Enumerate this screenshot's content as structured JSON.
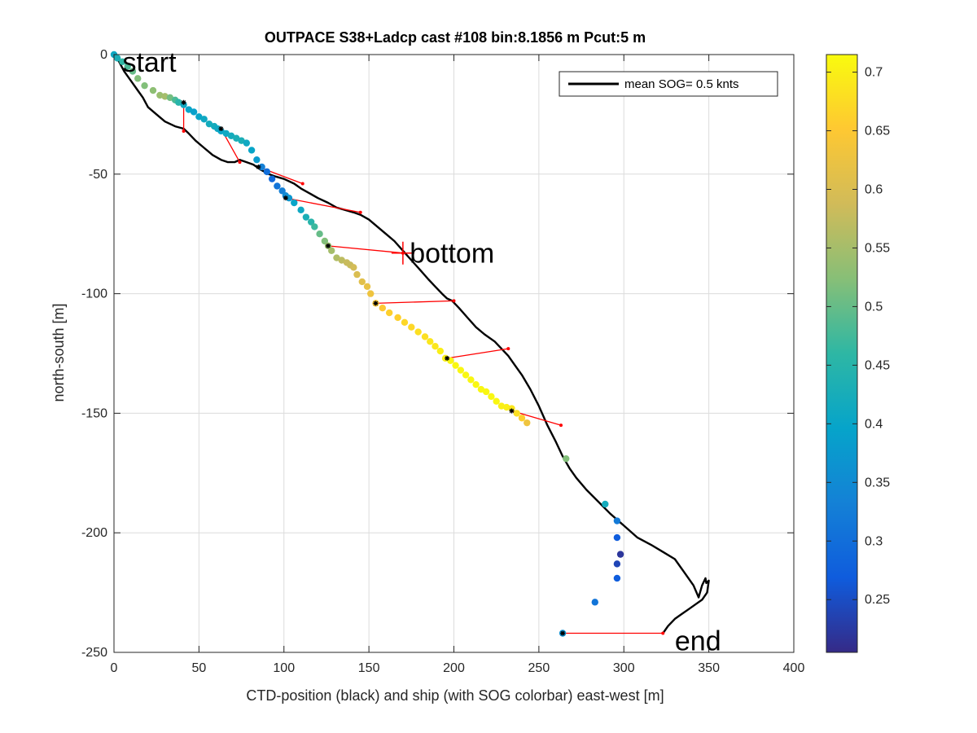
{
  "chart_data": {
    "type": "scatter",
    "title": "OUTPACE S38+Ladcp cast #108 bin:8.1856 m  Pcut:5 m",
    "xlabel": "CTD-position (black) and ship (with SOG colorbar) east-west [m]",
    "ylabel": "north-south [m]",
    "xlim": [
      0,
      400
    ],
    "ylim": [
      -250,
      0
    ],
    "xticks": [
      0,
      50,
      100,
      150,
      200,
      250,
      300,
      350,
      400
    ],
    "yticks": [
      -250,
      -200,
      -150,
      -100,
      -50,
      0
    ],
    "grid": true,
    "legend": {
      "placement": "top-right",
      "entries": [
        "mean SOG=  0.5 knts"
      ]
    },
    "colorbar": {
      "range": [
        0.205,
        0.715
      ],
      "ticks": [
        0.25,
        0.3,
        0.35,
        0.4,
        0.45,
        0.5,
        0.55,
        0.6,
        0.65,
        0.7
      ],
      "colormap": [
        "#352a87",
        "#0f5cdd",
        "#1481d6",
        "#06a4ca",
        "#2eb7a4",
        "#87bf77",
        "#d1bb59",
        "#fec832",
        "#f9fb0e"
      ]
    },
    "annotations": [
      {
        "text": "start",
        "x": 5,
        "y": -3
      },
      {
        "text": "bottom",
        "x": 174,
        "y": -83
      },
      {
        "text": "end",
        "x": 330,
        "y": -245
      }
    ],
    "ctd_track": {
      "name": "CTD-position",
      "x": [
        0,
        3,
        6,
        10,
        14,
        17,
        20,
        25,
        30,
        36,
        41,
        44,
        48,
        53,
        58,
        63,
        67,
        71,
        74,
        78,
        82,
        86,
        91,
        95,
        100,
        106,
        110,
        115,
        120,
        126,
        131,
        136,
        141,
        145,
        150,
        155,
        160,
        165,
        170,
        175,
        180,
        185,
        189,
        193,
        196,
        199,
        203,
        208,
        213,
        218,
        224,
        228,
        232,
        236,
        240,
        245,
        250,
        255,
        260,
        264,
        268,
        272,
        278,
        285,
        292,
        300,
        308,
        316,
        323,
        330,
        336,
        341,
        344,
        346,
        348,
        348.5,
        350,
        349,
        346,
        342,
        338,
        334,
        330,
        326,
        323
      ],
      "y": [
        0,
        -3,
        -7,
        -11,
        -15,
        -18,
        -22,
        -25,
        -28,
        -30,
        -31,
        -33,
        -36,
        -39,
        -42,
        -44,
        -45,
        -45,
        -44,
        -45,
        -46,
        -48,
        -50,
        -51,
        -52,
        -54,
        -56,
        -58,
        -60,
        -62,
        -64,
        -65,
        -66,
        -67,
        -69,
        -72,
        -75,
        -78,
        -82,
        -86,
        -90,
        -94,
        -97,
        -100,
        -102,
        -103,
        -106,
        -110,
        -114,
        -117,
        -120,
        -123,
        -126,
        -130,
        -134,
        -140,
        -147,
        -155,
        -162,
        -168,
        -173,
        -177,
        -182,
        -187,
        -192,
        -197,
        -202,
        -205,
        -208,
        -211,
        -217,
        -222,
        -227,
        -222,
        -219,
        -221,
        -220,
        -225,
        -228,
        -230,
        -232,
        -234,
        -236,
        -239,
        -242
      ]
    },
    "ship_track": {
      "name": "ship (SOG)",
      "x": [
        0,
        2,
        5,
        8,
        11,
        14,
        18,
        23,
        27,
        30,
        33,
        36,
        38,
        41,
        44,
        47,
        50,
        53,
        56,
        59,
        61,
        63,
        66,
        69,
        72,
        75,
        78,
        81,
        84,
        87,
        90,
        93,
        96,
        99,
        101,
        103,
        106,
        110,
        113,
        116,
        118,
        121,
        124,
        126,
        128,
        131,
        134,
        137,
        139,
        141,
        143,
        146,
        149,
        151,
        154,
        158,
        162,
        167,
        171,
        175,
        179,
        183,
        186,
        189,
        192,
        195,
        198,
        201,
        204,
        207,
        210,
        213,
        216,
        219,
        222,
        225,
        228,
        231,
        234,
        237,
        240,
        243,
        266,
        289,
        296,
        296,
        298,
        296,
        296,
        283,
        264
      ],
      "y": [
        0,
        -1.5,
        -3,
        -5,
        -7,
        -10,
        -13,
        -15,
        -17,
        -17.5,
        -18,
        -19,
        -20,
        -21,
        -23,
        -24,
        -26,
        -27,
        -29,
        -30,
        -31,
        -32,
        -33,
        -34,
        -35,
        -36,
        -37,
        -40,
        -44,
        -47,
        -49,
        -52,
        -55,
        -57,
        -59,
        -60,
        -62,
        -65,
        -68,
        -70,
        -72,
        -75,
        -78,
        -80,
        -82,
        -85,
        -86,
        -87,
        -88,
        -89,
        -92,
        -95,
        -97,
        -100,
        -104,
        -106,
        -108,
        -110,
        -112,
        -114,
        -116,
        -118,
        -120,
        -122,
        -124,
        -127,
        -128,
        -130,
        -132,
        -134,
        -136,
        -138,
        -140,
        -141,
        -143,
        -145,
        -147,
        -147.5,
        -148,
        -150,
        -152,
        -154,
        -169,
        -188,
        -195,
        -202,
        -209,
        -213,
        -219,
        -229,
        -242
      ],
      "sog": [
        0.41,
        0.43,
        0.46,
        0.48,
        0.5,
        0.52,
        0.52,
        0.53,
        0.54,
        0.55,
        0.51,
        0.48,
        0.45,
        0.41,
        0.4,
        0.39,
        0.4,
        0.41,
        0.42,
        0.42,
        0.41,
        0.4,
        0.41,
        0.42,
        0.43,
        0.43,
        0.41,
        0.4,
        0.38,
        0.33,
        0.3,
        0.29,
        0.31,
        0.33,
        0.35,
        0.37,
        0.4,
        0.41,
        0.43,
        0.45,
        0.47,
        0.5,
        0.52,
        0.54,
        0.55,
        0.56,
        0.57,
        0.58,
        0.58,
        0.59,
        0.6,
        0.61,
        0.62,
        0.63,
        0.64,
        0.65,
        0.66,
        0.66,
        0.67,
        0.67,
        0.68,
        0.68,
        0.69,
        0.69,
        0.7,
        0.7,
        0.71,
        0.71,
        0.71,
        0.71,
        0.71,
        0.71,
        0.71,
        0.71,
        0.71,
        0.71,
        0.7,
        0.7,
        0.69,
        0.68,
        0.66,
        0.63,
        0.52,
        0.42,
        0.32,
        0.27,
        0.22,
        0.24,
        0.27,
        0.31,
        0.36
      ]
    },
    "connections": [
      {
        "ship": [
          41,
          -20
        ],
        "ctd": [
          41,
          -32
        ]
      },
      {
        "ship": [
          63,
          -31
        ],
        "ctd": [
          74,
          -45
        ]
      },
      {
        "ship": [
          85,
          -47
        ],
        "ctd": [
          111,
          -54
        ]
      },
      {
        "ship": [
          101,
          -60
        ],
        "ctd": [
          145,
          -66
        ]
      },
      {
        "ship": [
          126,
          -80
        ],
        "ctd": [
          170,
          -83
        ]
      },
      {
        "ship": [
          154,
          -104
        ],
        "ctd": [
          200,
          -103
        ]
      },
      {
        "ship": [
          196,
          -127
        ],
        "ctd": [
          232,
          -123
        ]
      },
      {
        "ship": [
          234,
          -149
        ],
        "ctd": [
          263,
          -155
        ]
      },
      {
        "ship": [
          264,
          -242
        ],
        "ctd": [
          323,
          -242
        ]
      }
    ],
    "bottom_marker": {
      "x": 170,
      "y": -83
    }
  }
}
